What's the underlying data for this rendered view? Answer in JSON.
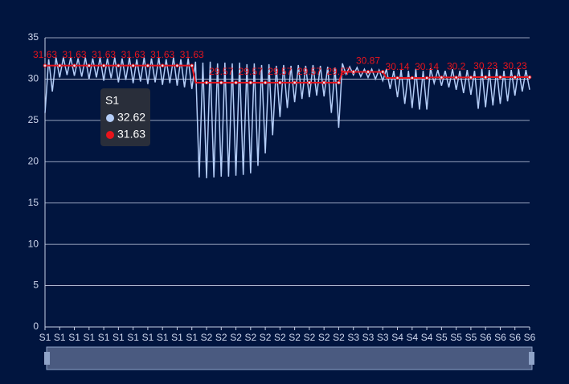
{
  "chart_data": {
    "type": "line",
    "categories": [
      "S1",
      null,
      null,
      null,
      "S1",
      null,
      null,
      null,
      "S1",
      null,
      null,
      null,
      "S1",
      null,
      null,
      null,
      "S1",
      null,
      null,
      null,
      "S1",
      null,
      null,
      null,
      "S1",
      null,
      null,
      null,
      "S1",
      null,
      null,
      null,
      "S1",
      null,
      null,
      null,
      "S1",
      null,
      null,
      null,
      "S1",
      null,
      null,
      null,
      "S2",
      null,
      null,
      null,
      "S2",
      null,
      null,
      null,
      "S2",
      null,
      null,
      null,
      "S2",
      null,
      null,
      null,
      "S2",
      null,
      null,
      null,
      "S2",
      null,
      null,
      null,
      "S2",
      null,
      null,
      null,
      "S2",
      null,
      null,
      null,
      "S2",
      null,
      null,
      null,
      "S2",
      null,
      null,
      null,
      "S3",
      null,
      null,
      null,
      "S3",
      null,
      null,
      null,
      "S3",
      null,
      null,
      null,
      "S4",
      null,
      null,
      null,
      "S4",
      null,
      null,
      null,
      "S4",
      null,
      null,
      null,
      "S5",
      null,
      null,
      null,
      "S5",
      null,
      null,
      null,
      "S5",
      null,
      null,
      null,
      "S6",
      null,
      null,
      null,
      "S6",
      null,
      null,
      null,
      "S6",
      null,
      null,
      null,
      "S6"
    ],
    "series": [
      {
        "color": "#b4cdf7",
        "values": [
          25.9,
          32.4,
          28.5,
          32.6,
          30.2,
          32.6,
          30.5,
          32.6,
          30.4,
          32.5,
          30.3,
          32.6,
          30.0,
          32.5,
          30.2,
          32.6,
          29.8,
          32.5,
          30.1,
          32.6,
          29.6,
          32.5,
          29.9,
          32.6,
          29.5,
          32.4,
          29.7,
          32.6,
          29.4,
          32.5,
          29.6,
          32.6,
          29.3,
          32.4,
          29.5,
          32.6,
          29.2,
          32.4,
          29.0,
          32.5,
          28.8,
          32.1,
          18.1,
          32.0,
          18.0,
          32.1,
          18.1,
          31.9,
          18.2,
          32.0,
          18.2,
          31.9,
          18.3,
          32.0,
          18.4,
          31.8,
          18.6,
          31.9,
          19.5,
          31.7,
          21.0,
          31.8,
          23.2,
          31.6,
          25.4,
          31.7,
          26.5,
          31.6,
          27.2,
          31.7,
          27.6,
          31.6,
          27.8,
          31.7,
          28.0,
          31.6,
          27.9,
          31.5,
          25.9,
          31.4,
          24.1,
          31.9,
          30.6,
          31.5,
          30.5,
          31.4,
          30.3,
          31.2,
          30.2,
          31.2,
          30.0,
          31.1,
          29.8,
          31.2,
          28.8,
          31.0,
          27.8,
          31.1,
          27.0,
          31.0,
          26.5,
          31.2,
          26.3,
          31.0,
          26.3,
          31.3,
          29.5,
          31.1,
          29.2,
          31.0,
          29.0,
          31.2,
          28.7,
          31.0,
          28.3,
          31.1,
          28.1,
          31.0,
          26.4,
          31.2,
          26.6,
          31.1,
          26.8,
          31.2,
          27.0,
          31.0,
          27.3,
          31.1,
          28.0,
          31.2,
          28.5,
          31.1,
          28.7
        ]
      },
      {
        "color": "#e8141c",
        "values": [
          31.63,
          31.63,
          31.63,
          31.63,
          31.63,
          31.63,
          31.63,
          31.63,
          31.63,
          31.63,
          31.63,
          31.63,
          31.63,
          31.63,
          31.63,
          31.63,
          31.63,
          31.63,
          31.63,
          31.63,
          31.63,
          31.63,
          31.63,
          31.63,
          31.63,
          31.63,
          31.63,
          31.63,
          31.63,
          31.63,
          31.63,
          31.63,
          31.63,
          31.63,
          31.63,
          31.63,
          31.63,
          31.63,
          31.63,
          31.63,
          31.63,
          29.57,
          29.57,
          29.57,
          29.57,
          29.57,
          29.57,
          29.57,
          29.57,
          29.57,
          29.57,
          29.57,
          29.57,
          29.57,
          29.57,
          29.57,
          29.57,
          29.57,
          29.57,
          29.57,
          29.57,
          29.57,
          29.57,
          29.57,
          29.57,
          29.57,
          29.57,
          29.57,
          29.57,
          29.57,
          29.57,
          29.57,
          29.57,
          29.57,
          29.57,
          29.57,
          29.57,
          29.57,
          29.57,
          29.57,
          29.57,
          30.87,
          30.87,
          30.87,
          30.87,
          30.87,
          30.87,
          30.87,
          30.87,
          30.87,
          30.87,
          30.87,
          30.87,
          30.14,
          30.14,
          30.14,
          30.14,
          30.14,
          30.14,
          30.14,
          30.14,
          30.14,
          30.14,
          30.14,
          30.14,
          30.2,
          30.2,
          30.2,
          30.2,
          30.2,
          30.2,
          30.2,
          30.2,
          30.2,
          30.2,
          30.2,
          30.2,
          30.23,
          30.23,
          30.23,
          30.23,
          30.23,
          30.23,
          30.23,
          30.23,
          30.23,
          30.23,
          30.23,
          30.23,
          30.23,
          30.23,
          30.23,
          30.23
        ]
      }
    ],
    "ylim": [
      0,
      35
    ],
    "yticks": [
      0,
      5,
      10,
      15,
      20,
      25,
      30,
      35
    ],
    "grid": true,
    "tooltip": {
      "title": "S1",
      "items": [
        {
          "value": 32.62,
          "color": "#b4cdf7"
        },
        {
          "value": 31.63,
          "color": "#e8141c"
        }
      ]
    }
  }
}
